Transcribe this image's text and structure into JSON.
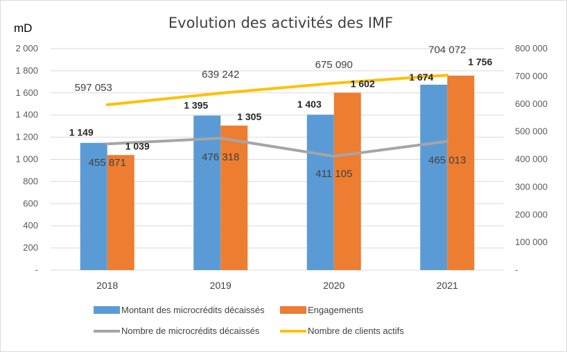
{
  "chart_data": {
    "type": "bar",
    "title": "Evolution des activités des IMF",
    "unit_label": "mD",
    "categories": [
      "2018",
      "2019",
      "2020",
      "2021"
    ],
    "ylim_left": [
      0,
      2000
    ],
    "ylim_right": [
      0,
      800000
    ],
    "left_ticks": [
      "-",
      "200",
      "400",
      "600",
      "800",
      "1 000",
      "1 200",
      "1 400",
      "1 600",
      "1 800",
      "2 000"
    ],
    "right_ticks": [
      "-",
      "100 000",
      "200 000",
      "300 000",
      "400 000",
      "500 000",
      "600 000",
      "700 000",
      "800 000"
    ],
    "grid": true,
    "legend_position": "bottom",
    "series": [
      {
        "name": "Montant des microcrédits décaissés",
        "kind": "bar",
        "axis": "left",
        "color": "#5B9BD5",
        "values": [
          1149,
          1395,
          1403,
          1674
        ],
        "labels": [
          "1 149",
          "1 395",
          "1 403",
          "1 674"
        ]
      },
      {
        "name": "Engagements",
        "kind": "bar",
        "axis": "left",
        "color": "#ED7D31",
        "values": [
          1039,
          1305,
          1602,
          1756
        ],
        "labels": [
          "1 039",
          "1 305",
          "1 602",
          "1 756"
        ]
      },
      {
        "name": "Nombre de microcrédits décaissés",
        "kind": "line",
        "axis": "right",
        "color": "#A5A5A5",
        "values": [
          455871,
          476318,
          411105,
          465013
        ],
        "labels": [
          "455 871",
          "476 318",
          "411 105",
          "465 013"
        ]
      },
      {
        "name": "Nombre de clients actifs",
        "kind": "line",
        "axis": "right",
        "color": "#FFC000",
        "values": [
          597053,
          639242,
          675090,
          704072
        ],
        "labels": [
          "597 053",
          "639 242",
          "675 090",
          "704 072"
        ]
      }
    ]
  }
}
